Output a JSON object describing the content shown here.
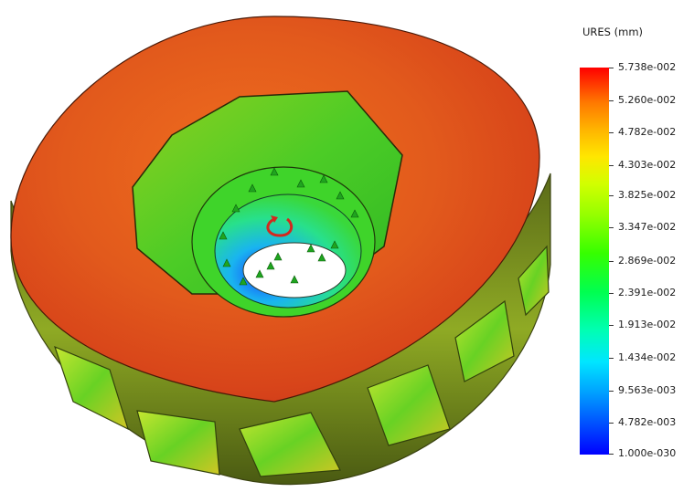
{
  "legend": {
    "title": "URES (mm)",
    "labels": [
      "5.738e-002",
      "5.260e-002",
      "4.782e-002",
      "4.303e-002",
      "3.825e-002",
      "3.347e-002",
      "2.869e-002",
      "2.391e-002",
      "1.913e-002",
      "1.434e-002",
      "9.563e-003",
      "4.782e-003",
      "1.000e-030"
    ],
    "colormap": [
      "#0000ff",
      "#00e6ff",
      "#00ff50",
      "#96ff00",
      "#ffe600",
      "#ff7800",
      "#ff0000"
    ]
  },
  "model": {
    "rim_color": "#e0441a",
    "inner_color": "#3fd82a",
    "pocket_color": "#8fe62a",
    "hub_gradient": [
      "#1a4bff",
      "#14d0e6",
      "#38e03a"
    ],
    "fixture_color": "#1fa51f",
    "torque_color": "#d4281e",
    "fixture-icon": "green-arrow",
    "torque-icon": "red-rotation-arrow"
  }
}
